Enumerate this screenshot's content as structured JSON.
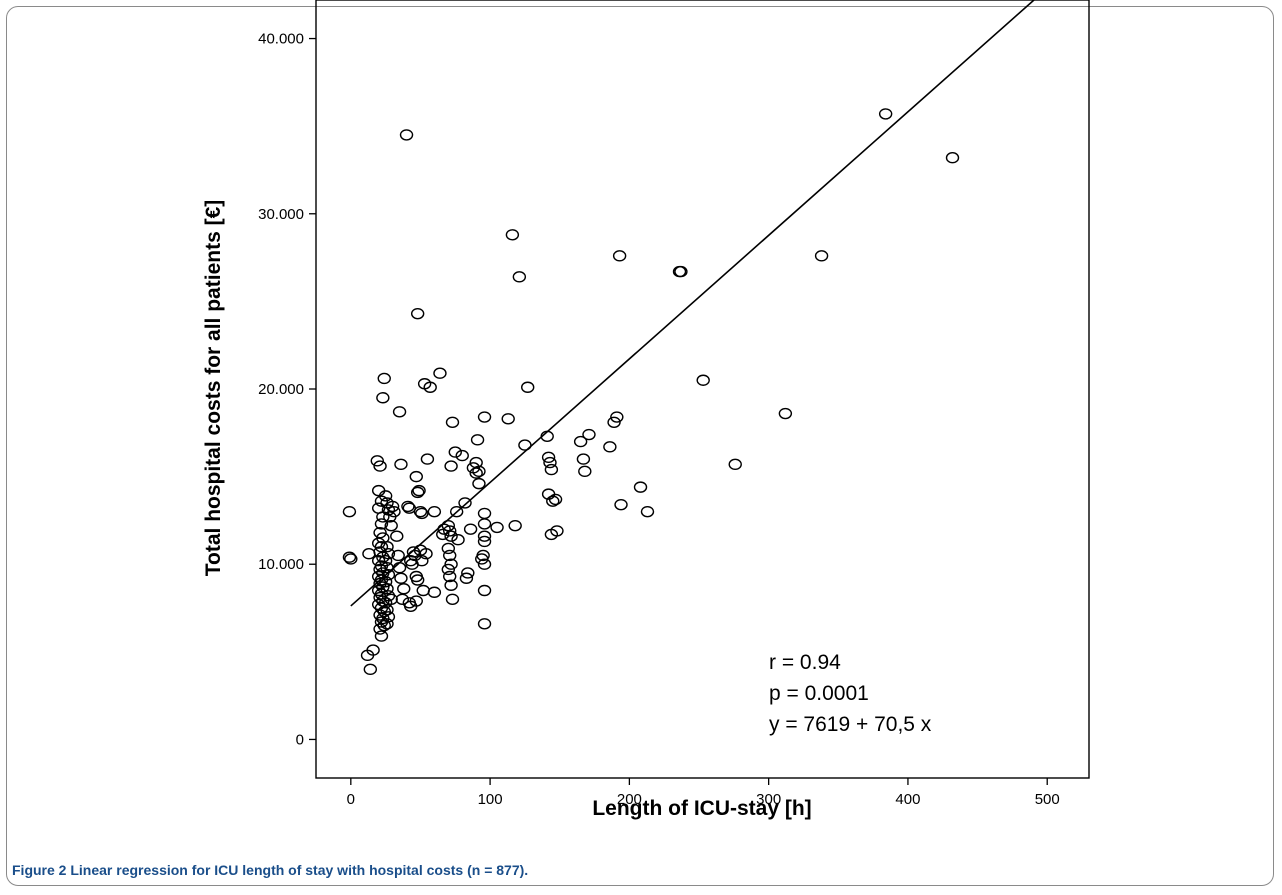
{
  "caption": {
    "label": "Figure 2",
    "text": " Linear regression for ICU length of stay with hospital costs (n = 877)."
  },
  "chart_data": {
    "type": "scatter",
    "xlabel": "Length of ICU-stay [h]",
    "ylabel": "Total hospital costs for all patients [€]",
    "xlim": [
      -25,
      530
    ],
    "ylim": [
      -2200,
      42200
    ],
    "x_ticks": [
      0,
      100,
      200,
      300,
      400,
      500
    ],
    "x_tick_labels": [
      "0",
      "100",
      "200",
      "300",
      "400",
      "500"
    ],
    "y_ticks": [
      0,
      10000,
      20000,
      30000,
      40000
    ],
    "y_tick_labels": [
      "0",
      "10.000",
      "20.000",
      "30.000",
      "40.000"
    ],
    "grid": false,
    "regression": {
      "intercept": 7619,
      "slope": 70.5
    },
    "annotations": [
      "r = 0.94",
      "p = 0.0001",
      "y = 7619 + 70,5 x"
    ],
    "points": [
      [
        -1,
        13000
      ],
      [
        -1,
        10400
      ],
      [
        0,
        10300
      ],
      [
        12,
        4800
      ],
      [
        14,
        4000
      ],
      [
        16,
        5100
      ],
      [
        13,
        10600
      ],
      [
        19,
        15900
      ],
      [
        21,
        15600
      ],
      [
        20,
        14200
      ],
      [
        22,
        13600
      ],
      [
        20,
        13200
      ],
      [
        23,
        12700
      ],
      [
        22,
        12300
      ],
      [
        21,
        11800
      ],
      [
        23,
        11500
      ],
      [
        20,
        11200
      ],
      [
        22,
        11000
      ],
      [
        21,
        10700
      ],
      [
        23,
        10400
      ],
      [
        20,
        10200
      ],
      [
        22,
        9900
      ],
      [
        21,
        9700
      ],
      [
        23,
        9500
      ],
      [
        20,
        9300
      ],
      [
        22,
        9100
      ],
      [
        21,
        8900
      ],
      [
        23,
        8700
      ],
      [
        20,
        8500
      ],
      [
        22,
        8300
      ],
      [
        21,
        8100
      ],
      [
        23,
        7900
      ],
      [
        20,
        7700
      ],
      [
        22,
        7500
      ],
      [
        24,
        7300
      ],
      [
        21,
        7100
      ],
      [
        23,
        6900
      ],
      [
        22,
        6700
      ],
      [
        24,
        6500
      ],
      [
        21,
        6300
      ],
      [
        22,
        5900
      ],
      [
        24,
        20600
      ],
      [
        23,
        19500
      ],
      [
        25,
        13900
      ],
      [
        26,
        13500
      ],
      [
        27,
        13100
      ],
      [
        28,
        12700
      ],
      [
        26,
        11000
      ],
      [
        27,
        10600
      ],
      [
        25,
        10200
      ],
      [
        26,
        9800
      ],
      [
        27,
        9400
      ],
      [
        25,
        9000
      ],
      [
        26,
        8600
      ],
      [
        27,
        8200
      ],
      [
        25,
        7800
      ],
      [
        26,
        7400
      ],
      [
        27,
        7000
      ],
      [
        26,
        6600
      ],
      [
        29,
        12200
      ],
      [
        29,
        8000
      ],
      [
        30,
        13300
      ],
      [
        31,
        13000
      ],
      [
        33,
        11600
      ],
      [
        34,
        10500
      ],
      [
        35,
        18700
      ],
      [
        36,
        15700
      ],
      [
        35,
        9800
      ],
      [
        36,
        9200
      ],
      [
        38,
        8600
      ],
      [
        37,
        8000
      ],
      [
        40,
        34500
      ],
      [
        41,
        13300
      ],
      [
        42,
        13200
      ],
      [
        43,
        10200
      ],
      [
        44,
        10000
      ],
      [
        42,
        7800
      ],
      [
        43,
        7600
      ],
      [
        45,
        10700
      ],
      [
        46,
        10500
      ],
      [
        47,
        9300
      ],
      [
        48,
        9100
      ],
      [
        47,
        7900
      ],
      [
        48,
        24300
      ],
      [
        47,
        15000
      ],
      [
        48,
        14100
      ],
      [
        49,
        14200
      ],
      [
        50,
        13000
      ],
      [
        51,
        12900
      ],
      [
        50,
        10800
      ],
      [
        51,
        10200
      ],
      [
        52,
        8500
      ],
      [
        53,
        20300
      ],
      [
        55,
        16000
      ],
      [
        54,
        10600
      ],
      [
        57,
        20100
      ],
      [
        60,
        8400
      ],
      [
        60,
        13000
      ],
      [
        64,
        20900
      ],
      [
        66,
        11700
      ],
      [
        67,
        12000
      ],
      [
        70,
        12200
      ],
      [
        71,
        11900
      ],
      [
        72,
        11600
      ],
      [
        70,
        10900
      ],
      [
        71,
        10500
      ],
      [
        72,
        10000
      ],
      [
        70,
        9700
      ],
      [
        71,
        9300
      ],
      [
        72,
        8800
      ],
      [
        73,
        8000
      ],
      [
        72,
        15600
      ],
      [
        73,
        18100
      ],
      [
        75,
        16400
      ],
      [
        76,
        13000
      ],
      [
        77,
        11400
      ],
      [
        80,
        16200
      ],
      [
        82,
        13500
      ],
      [
        83,
        9200
      ],
      [
        84,
        9500
      ],
      [
        86,
        12000
      ],
      [
        88,
        15500
      ],
      [
        90,
        15200
      ],
      [
        90,
        15800
      ],
      [
        91,
        17100
      ],
      [
        92,
        14600
      ],
      [
        92,
        15300
      ],
      [
        94,
        10300
      ],
      [
        95,
        10500
      ],
      [
        96,
        18400
      ],
      [
        96,
        12900
      ],
      [
        96,
        12300
      ],
      [
        96,
        11600
      ],
      [
        96,
        11300
      ],
      [
        96,
        10000
      ],
      [
        96,
        8500
      ],
      [
        96,
        6600
      ],
      [
        105,
        12100
      ],
      [
        113,
        18300
      ],
      [
        116,
        28800
      ],
      [
        118,
        12200
      ],
      [
        121,
        26400
      ],
      [
        125,
        16800
      ],
      [
        127,
        20100
      ],
      [
        141,
        17300
      ],
      [
        142,
        16100
      ],
      [
        143,
        15800
      ],
      [
        144,
        15400
      ],
      [
        142,
        14000
      ],
      [
        145,
        13600
      ],
      [
        144,
        11700
      ],
      [
        147,
        13700
      ],
      [
        148,
        11900
      ],
      [
        165,
        17000
      ],
      [
        167,
        16000
      ],
      [
        168,
        15300
      ],
      [
        171,
        17400
      ],
      [
        186,
        16700
      ],
      [
        189,
        18100
      ],
      [
        191,
        18400
      ],
      [
        193,
        27600
      ],
      [
        194,
        13400
      ],
      [
        208,
        14400
      ],
      [
        213,
        13000
      ],
      [
        236,
        26700
      ],
      [
        237,
        26700
      ],
      [
        253,
        20500
      ],
      [
        276,
        15700
      ],
      [
        312,
        18600
      ],
      [
        338,
        27600
      ],
      [
        384,
        35700
      ],
      [
        432,
        33200
      ]
    ]
  }
}
